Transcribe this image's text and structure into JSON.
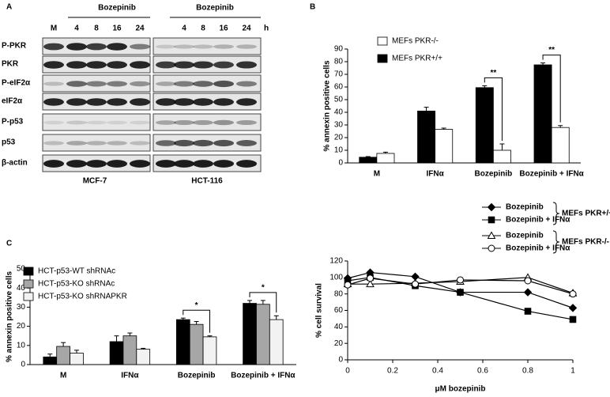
{
  "blot": {
    "panel": "A",
    "treatment_labels": [
      "Bozepinib",
      "Bozepinib"
    ],
    "lanes_left": [
      "M",
      "4",
      "8",
      "16",
      "24"
    ],
    "lanes_right": [
      "4",
      "8",
      "16",
      "24"
    ],
    "unit": "h",
    "rows": [
      "P-PKR",
      "PKR",
      "P-eIF2α",
      "eIF2α",
      "P-p53",
      "p53",
      "β-actin"
    ],
    "cells": [
      "MCF-7",
      "HCT-116"
    ]
  },
  "chart_data": [
    {
      "type": "bar",
      "panel": "B",
      "ylabel": "% annexin positive cells",
      "categories": [
        "M",
        "IFNα",
        "Bozepinib",
        "Bozepinib + IFNα"
      ],
      "series": [
        {
          "name": "MEFs PKR+/+",
          "color": "#000000",
          "values": [
            4.5,
            41,
            59.5,
            77.5
          ],
          "errors": [
            0.5,
            3,
            1.5,
            1.5
          ]
        },
        {
          "name": "MEFs PKR-/-",
          "color": "#ffffff",
          "values": [
            7.5,
            26.5,
            10,
            28
          ],
          "errors": [
            1,
            1,
            5,
            1.5
          ]
        }
      ],
      "legend_order": [
        1,
        0
      ],
      "ylim": [
        0,
        90
      ],
      "yticks": [
        0,
        10,
        20,
        30,
        40,
        50,
        60,
        70,
        80,
        90
      ],
      "annotations": [
        {
          "text": "**",
          "category": 2
        },
        {
          "text": "**",
          "category": 3
        }
      ]
    },
    {
      "type": "bar",
      "panel": "C",
      "ylabel": "% annexin positive cells",
      "categories": [
        "M",
        "IFNα",
        "Bozepinib",
        "Bozepinib + IFNα"
      ],
      "series": [
        {
          "name": "HCT-p53-WT shRNAc",
          "color": "#000000",
          "values": [
            4,
            12,
            23.5,
            32
          ],
          "errors": [
            1.5,
            3,
            0.8,
            1.5
          ]
        },
        {
          "name": "HCT-p53-KO shRNAc",
          "color": "#a6a6a6",
          "values": [
            9.5,
            15,
            21,
            31.5
          ],
          "errors": [
            2,
            1.5,
            1.5,
            2
          ]
        },
        {
          "name": "HCT-p53-KO shRNAPKR",
          "color": "#f2f2f2",
          "values": [
            6,
            8,
            14.5,
            23.5
          ],
          "errors": [
            1.5,
            0.5,
            0.5,
            2
          ]
        }
      ],
      "legend_order": [
        0,
        1,
        2
      ],
      "ylim": [
        0,
        50
      ],
      "yticks": [
        0,
        10,
        20,
        30,
        40,
        50
      ],
      "annotations": [
        {
          "text": "*",
          "category": 2
        },
        {
          "text": "*",
          "category": 3
        }
      ]
    },
    {
      "type": "line",
      "xlabel": "μM bozepinib",
      "ylabel": "% cell survival",
      "x": [
        0,
        0.1,
        0.3,
        0.5,
        0.8,
        1
      ],
      "series": [
        {
          "name": "Bozepinib",
          "color": "#000000",
          "marker": "diamond",
          "filled": true,
          "values": [
            99,
            106,
            101,
            82,
            82,
            63
          ]
        },
        {
          "name": "Bozepinib + IFNα",
          "color": "#000000",
          "marker": "square",
          "filled": true,
          "values": [
            96,
            100,
            90,
            82,
            59,
            49
          ]
        },
        {
          "name": "Bozepinib",
          "color": "#000000",
          "marker": "triangle",
          "filled": false,
          "values": [
            92,
            92,
            93,
            95,
            100,
            81
          ]
        },
        {
          "name": "Bozepinib + IFNα",
          "color": "#000000",
          "marker": "circle",
          "filled": false,
          "values": [
            91,
            99,
            92,
            97,
            96,
            80
          ]
        }
      ],
      "legend_groups": [
        "MEFs PKR+/+",
        "MEFs PKR-/-"
      ],
      "xlim": [
        0,
        1
      ],
      "xticks": [
        0,
        0.2,
        0.4,
        0.6,
        0.8,
        1
      ],
      "ylim": [
        0,
        120
      ],
      "yticks": [
        0,
        20,
        40,
        60,
        80,
        100,
        120
      ]
    }
  ]
}
